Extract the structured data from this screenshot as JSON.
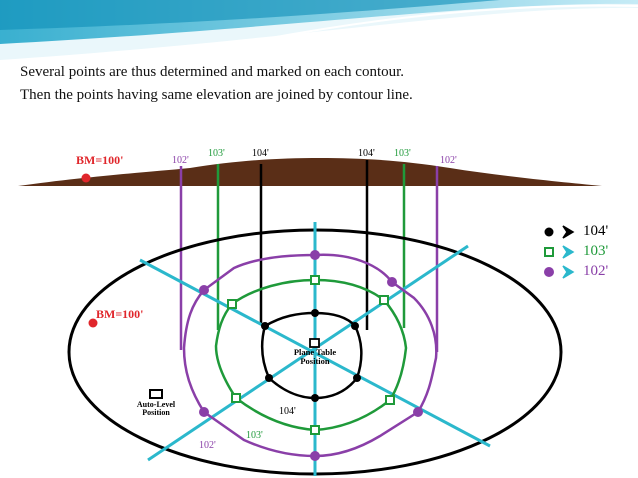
{
  "slide": {
    "line1": "Several points are thus determined and marked on each contour.",
    "line2": "Then the points having same elevation are joined by contour line."
  },
  "colors": {
    "ground": "#5a2e17",
    "contour_104": "#000000",
    "contour_103": "#1f9a3a",
    "contour_102": "#8a3fa8",
    "radial": "#2bb8cc",
    "benchmark": "#e0262b"
  },
  "profile": {
    "benchmark_label": "BM=100'",
    "labels": [
      "102'",
      "103'",
      "104'",
      "104'",
      "103'",
      "102'"
    ]
  },
  "plan": {
    "benchmark_label": "BM=100'",
    "plane_table_line1": "Plane Table",
    "plane_table_line2": "Position",
    "auto_level_line1": "Auto-Level",
    "auto_level_line2": "Position",
    "contour_labels": {
      "c104": "104'",
      "c103": "103'",
      "c102": "102'"
    }
  },
  "legend": [
    {
      "label": "104'",
      "marker": "filled-dot",
      "color": "#000000",
      "arrow_color": "#000000"
    },
    {
      "label": "103'",
      "marker": "hollow-square",
      "color": "#1f9a3a",
      "arrow_color": "#2bb8cc"
    },
    {
      "label": "102'",
      "marker": "filled-dot",
      "color": "#8a3fa8",
      "arrow_color": "#2bb8cc"
    }
  ]
}
